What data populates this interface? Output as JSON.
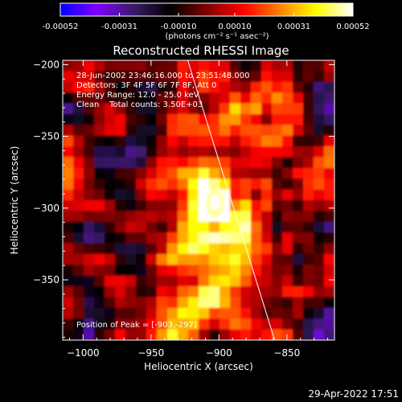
{
  "colorbar": {
    "tick_labels": [
      "-0.00052",
      "-0.00031",
      "-0.00010",
      "0.00010",
      "0.00031",
      "0.00052"
    ],
    "tick_values": [
      -0.00052,
      -0.00031,
      -0.0001,
      0.0001,
      0.00031,
      0.00052
    ],
    "range": [
      -0.00052,
      0.00052
    ],
    "units_label": "(photons cm⁻² s⁻¹ asec⁻²)",
    "colors": [
      "#0000ff",
      "#8000ff",
      "#3a1a6a",
      "#000000",
      "#800000",
      "#ff0000",
      "#ff8000",
      "#ffff00",
      "#ffffff"
    ]
  },
  "chart_data": {
    "type": "heatmap",
    "title": "Reconstructed RHESSI Image",
    "xlabel": "Heliocentric X (arcsec)",
    "ylabel": "Heliocentric Y (arcsec)",
    "xlim": [
      -1015,
      -815
    ],
    "ylim": [
      -392,
      -197
    ],
    "x_ticks": [
      -1000,
      -950,
      -900,
      -850
    ],
    "y_ticks": [
      -200,
      -250,
      -300,
      -350
    ],
    "x_tick_labels": [
      "−1000",
      "−950",
      "−900",
      "−850"
    ],
    "y_tick_labels": [
      "−200",
      "−250",
      "−300",
      "−350"
    ],
    "peak": {
      "x": -903,
      "y": -297
    },
    "limb_line": [
      [
        -923,
        -197
      ],
      [
        -859,
        -392
      ]
    ],
    "annotations": [
      "28-Jun-2002 23:46:16.000 to 23:51:48.000",
      "Detectors: 3F 4F 5F 6F 7F 8F, Att 0",
      "Energy Range: 12.0 - 25.0 keV",
      "Clean    Total counts: 3.50E+03"
    ],
    "peak_label": "Position of Peak = [-903,-297]"
  },
  "footer": {
    "timestamp": "29-Apr-2022 17:51"
  }
}
